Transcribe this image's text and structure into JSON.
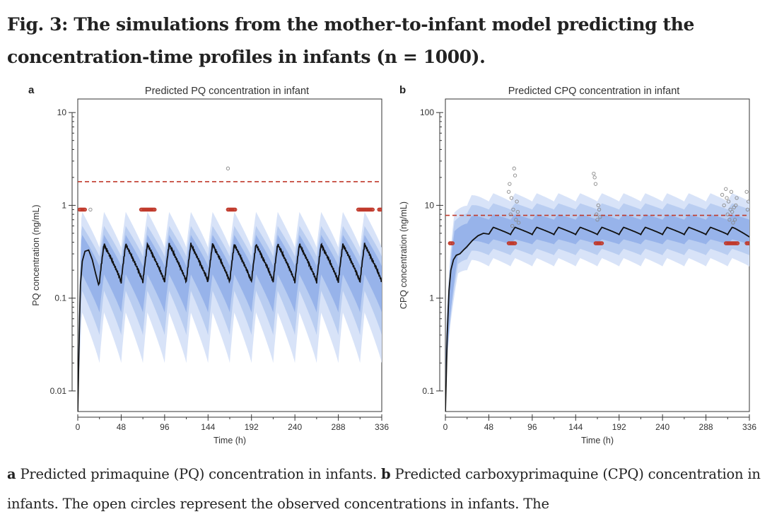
{
  "figure": {
    "title": "Fig. 3: The simulations from the mother-to-infant model predicting the concentration-time profiles in infants (n  =  1000).",
    "caption": {
      "a_label": "a",
      "a_text": "Predicted primaquine (PQ) concentration in infants.",
      "b_label": "b",
      "b_text": "Predicted carboxyprimaquine (CPQ) concentration in infants. The open circles represent the observed concentrations in infants. The"
    }
  },
  "colors": {
    "band_outer": "#d8e3f8",
    "band_mid": "#b9cdf1",
    "band_inner": "#97b3ea",
    "median_line": "#111111",
    "threshold_line": "#c0392b",
    "bql_points": "#c0392b",
    "observed_points": "#8a8a8a"
  },
  "chart_data": [
    {
      "type": "line",
      "letter": "a",
      "title": "Predicted PQ concentration in infant",
      "xlabel": "Time (h)",
      "ylabel": "PQ concentration (ng/mL)",
      "xlim": [
        0,
        336
      ],
      "ylim": [
        0.006,
        14
      ],
      "yscale": "log",
      "xticks": [
        0,
        48,
        96,
        144,
        192,
        240,
        288,
        336
      ],
      "yticks": [
        0.01,
        0.1,
        1,
        10
      ],
      "ytick_labels": [
        "0.01",
        "0.1",
        "1",
        "10"
      ],
      "dosing_interval_h": 24,
      "median": {
        "trough": 0.15,
        "peak": 0.38,
        "first_dose": [
          [
            0,
            0.006
          ],
          [
            1,
            0.02
          ],
          [
            2,
            0.06
          ],
          [
            3,
            0.14
          ],
          [
            5,
            0.25
          ],
          [
            8,
            0.32
          ],
          [
            12,
            0.33
          ],
          [
            16,
            0.26
          ],
          [
            20,
            0.18
          ],
          [
            23,
            0.14
          ]
        ],
        "end": [
          [
            336,
            0.155
          ]
        ]
      },
      "bands": [
        {
          "name": "outer",
          "low": [
            [
              0,
              0.006
            ],
            [
              24,
              0.04
            ]
          ],
          "trough_low": 0.02,
          "trough_high": 0.35,
          "peak_low": 0.07,
          "peak_high": 0.85
        },
        {
          "name": "mid",
          "trough_low": 0.04,
          "trough_high": 0.28,
          "peak_low": 0.12,
          "peak_high": 0.6
        },
        {
          "name": "inner",
          "trough_low": 0.07,
          "trough_high": 0.22,
          "peak_low": 0.18,
          "peak_high": 0.48
        }
      ],
      "threshold": 1.8,
      "bql_value": 0.9,
      "bql_times": [
        2,
        3,
        4,
        5,
        6,
        7,
        8,
        70,
        71,
        72,
        73,
        74,
        75,
        76,
        77,
        78,
        79,
        80,
        81,
        82,
        83,
        84,
        85,
        166,
        167,
        168,
        169,
        170,
        171,
        172,
        173,
        174,
        310,
        311,
        312,
        313,
        314,
        315,
        316,
        317,
        318,
        319,
        320,
        321,
        322,
        323,
        324,
        325,
        326,
        333,
        334,
        335,
        336
      ],
      "observed": [
        [
          14,
          0.9
        ],
        [
          166,
          2.5
        ]
      ]
    },
    {
      "type": "line",
      "letter": "b",
      "title": "Predicted CPQ concentration in infant",
      "xlabel": "Time (h)",
      "ylabel": "CPQ concentration (ng/mL)",
      "xlim": [
        0,
        336
      ],
      "ylim": [
        0.06,
        140
      ],
      "yscale": "log",
      "xticks": [
        0,
        48,
        96,
        144,
        192,
        240,
        288,
        336
      ],
      "yticks": [
        0.1,
        1,
        10,
        100
      ],
      "ytick_labels": [
        "0.1",
        "1",
        "10",
        "100"
      ],
      "dosing_interval_h": 24,
      "median": {
        "points": [
          [
            0,
            0.06
          ],
          [
            1,
            0.15
          ],
          [
            2,
            0.4
          ],
          [
            4,
            1.2
          ],
          [
            6,
            2.0
          ],
          [
            9,
            2.6
          ],
          [
            12,
            2.9
          ],
          [
            16,
            3.0
          ],
          [
            20,
            3.3
          ],
          [
            24,
            3.6
          ],
          [
            30,
            4.2
          ],
          [
            36,
            4.7
          ],
          [
            42,
            5.0
          ],
          [
            48,
            4.9
          ]
        ],
        "trough": 4.85,
        "peak": 5.8,
        "end": [
          [
            336,
            5.4
          ]
        ]
      },
      "bands": [
        {
          "name": "outer",
          "trough_low": 2.2,
          "trough_high": 11.0,
          "peak_low": 2.7,
          "peak_high": 13.5
        },
        {
          "name": "mid",
          "trough_low": 2.9,
          "trough_high": 9.0,
          "peak_low": 3.4,
          "peak_high": 10.5
        },
        {
          "name": "inner",
          "trough_low": 3.8,
          "trough_high": 7.0,
          "peak_low": 4.3,
          "peak_high": 8.0
        }
      ],
      "threshold": 7.8,
      "bql_value": 3.9,
      "bql_times": [
        5,
        6,
        7,
        8,
        70,
        71,
        72,
        73,
        74,
        75,
        76,
        77,
        166,
        167,
        168,
        169,
        170,
        171,
        172,
        173,
        310,
        311,
        312,
        313,
        314,
        315,
        316,
        317,
        318,
        319,
        320,
        321,
        322,
        323,
        333,
        334,
        335,
        336
      ],
      "observed": [
        [
          70,
          14
        ],
        [
          71,
          17
        ],
        [
          72,
          8
        ],
        [
          73,
          12
        ],
        [
          74,
          6
        ],
        [
          75,
          9
        ],
        [
          76,
          25
        ],
        [
          77,
          21
        ],
        [
          78,
          7
        ],
        [
          79,
          11
        ],
        [
          80,
          8.5
        ],
        [
          81,
          6.5
        ],
        [
          164,
          22
        ],
        [
          165,
          20
        ],
        [
          166,
          17
        ],
        [
          167,
          8
        ],
        [
          168,
          7
        ],
        [
          169,
          10
        ],
        [
          170,
          9
        ],
        [
          171,
          7.5
        ],
        [
          306,
          13
        ],
        [
          308,
          10
        ],
        [
          310,
          15
        ],
        [
          311,
          12
        ],
        [
          312,
          8
        ],
        [
          313,
          11
        ],
        [
          314,
          7
        ],
        [
          315,
          9
        ],
        [
          316,
          14
        ],
        [
          317,
          8.5
        ],
        [
          318,
          6.5
        ],
        [
          319,
          9.5
        ],
        [
          320,
          7
        ],
        [
          321,
          10
        ],
        [
          322,
          12
        ],
        [
          333,
          14
        ],
        [
          334,
          9
        ],
        [
          335,
          11
        ]
      ]
    }
  ]
}
